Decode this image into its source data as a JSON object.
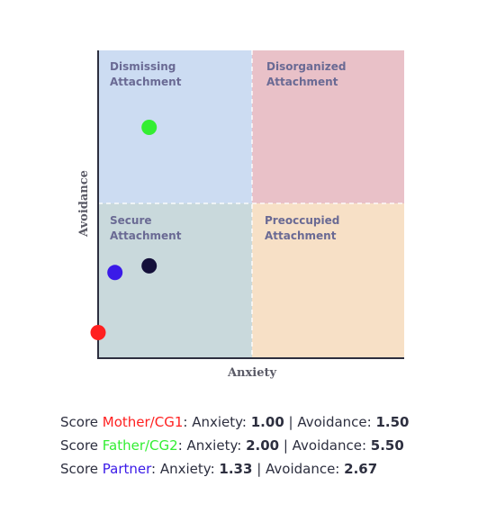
{
  "chart_data": {
    "type": "scatter",
    "xlabel": "Anxiety",
    "ylabel": "Avoidance",
    "xlim": [
      1,
      7
    ],
    "ylim": [
      1,
      7
    ],
    "grid": false,
    "quadrants": [
      {
        "id": "dismissing",
        "label_line1": "Dismissing",
        "label_line2": "Attachment",
        "color": "#ccdcf2"
      },
      {
        "id": "disorganized",
        "label_line1": "Disorganized",
        "label_line2": "Attachment",
        "color": "#e9c1c8"
      },
      {
        "id": "secure",
        "label_line1": "Secure",
        "label_line2": "Attachment",
        "color": "#c9d9dc"
      },
      {
        "id": "preoccupied",
        "label_line1": "Preoccupied",
        "label_line2": "Attachment",
        "color": "#f7e0c6"
      }
    ],
    "series": [
      {
        "name": "Mother/CG1",
        "color": "#ff2020",
        "x": [
          1.0
        ],
        "y": [
          1.5
        ]
      },
      {
        "name": "Father/CG2",
        "color": "#33ee33",
        "x": [
          2.0
        ],
        "y": [
          5.5
        ]
      },
      {
        "name": "Partner",
        "color": "#3a1ae8",
        "x": [
          1.33
        ],
        "y": [
          2.67
        ]
      },
      {
        "color": "#14103a",
        "x": [
          2.0
        ],
        "y": [
          2.8
        ]
      }
    ]
  },
  "scores": [
    {
      "prefix": "Score ",
      "name": "Mother/CG1",
      "color": "#ff2020",
      "anxiety_label": ": Anxiety: ",
      "anxiety": "1.00",
      "sep": " | Avoidance: ",
      "avoidance": "1.50"
    },
    {
      "prefix": "Score ",
      "name": "Father/CG2",
      "color": "#33ee33",
      "anxiety_label": ": Anxiety: ",
      "anxiety": "2.00",
      "sep": " | Avoidance: ",
      "avoidance": "5.50"
    },
    {
      "prefix": "Score ",
      "name": "Partner",
      "color": "#3a1ae8",
      "anxiety_label": ": Anxiety: ",
      "anxiety": "1.33",
      "sep": " | Avoidance: ",
      "avoidance": "2.67"
    }
  ]
}
